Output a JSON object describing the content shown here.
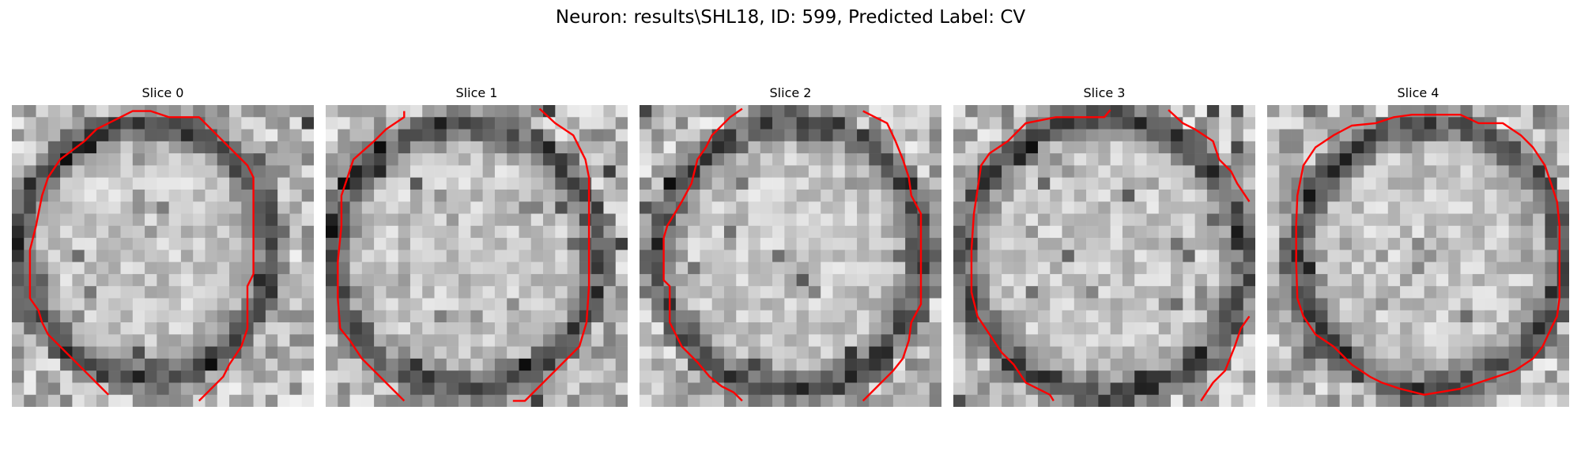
{
  "figure": {
    "title": "Neuron: results\\SHL18, ID: 599, Predicted Label: CV"
  },
  "colors": {
    "contour": "#ff0000",
    "colormap": "gray"
  },
  "panels": [
    {
      "title": "Slice 0",
      "seed": 11
    },
    {
      "title": "Slice 1",
      "seed": 23
    },
    {
      "title": "Slice 2",
      "seed": 37
    },
    {
      "title": "Slice 3",
      "seed": 41
    },
    {
      "title": "Slice 4",
      "seed": 59
    }
  ]
}
